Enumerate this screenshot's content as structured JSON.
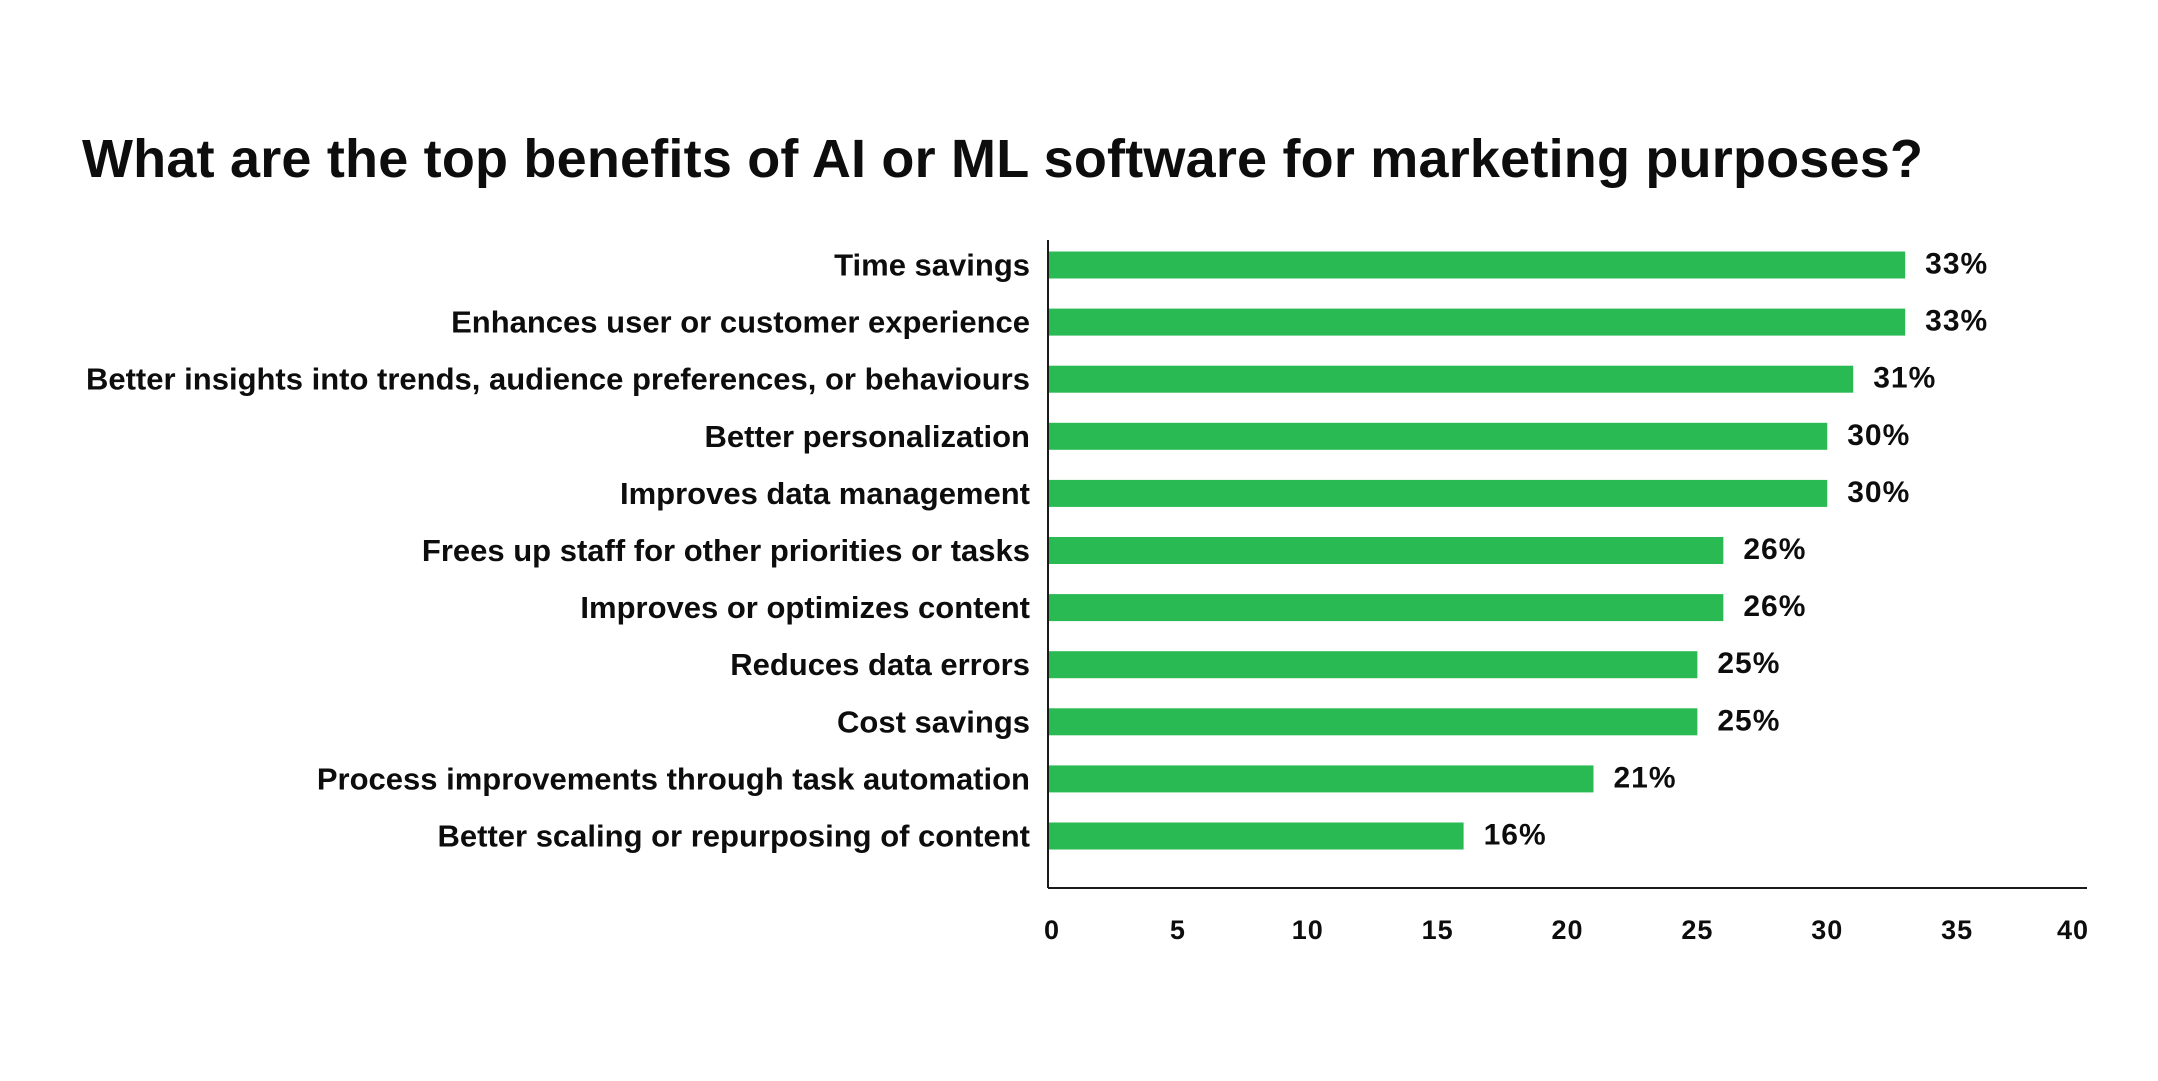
{
  "chart_data": {
    "type": "bar",
    "orientation": "horizontal",
    "title": "What are the top benefits of AI or ML software for marketing purposes?",
    "xlabel": "",
    "ylabel": "",
    "xlim": [
      0,
      40
    ],
    "x_ticks": [
      0,
      5,
      10,
      15,
      20,
      25,
      30,
      35,
      40
    ],
    "grid": false,
    "bar_color": "#2aba53",
    "value_suffix": "%",
    "categories": [
      "Time savings",
      "Enhances user or customer experience",
      "Better insights into trends, audience preferences, or behaviours",
      "Better personalization",
      "Improves data management",
      "Frees up staff for other priorities or tasks",
      "Improves or optimizes content",
      "Reduces data errors",
      "Cost savings",
      "Process improvements through task automation",
      "Better scaling or repurposing of content"
    ],
    "values": [
      33,
      33,
      31,
      30,
      30,
      26,
      26,
      25,
      25,
      21,
      16
    ],
    "value_labels": [
      "33%",
      "33%",
      "31%",
      "30%",
      "30%",
      "26%",
      "26%",
      "25%",
      "25%",
      "21%",
      "16%"
    ]
  }
}
